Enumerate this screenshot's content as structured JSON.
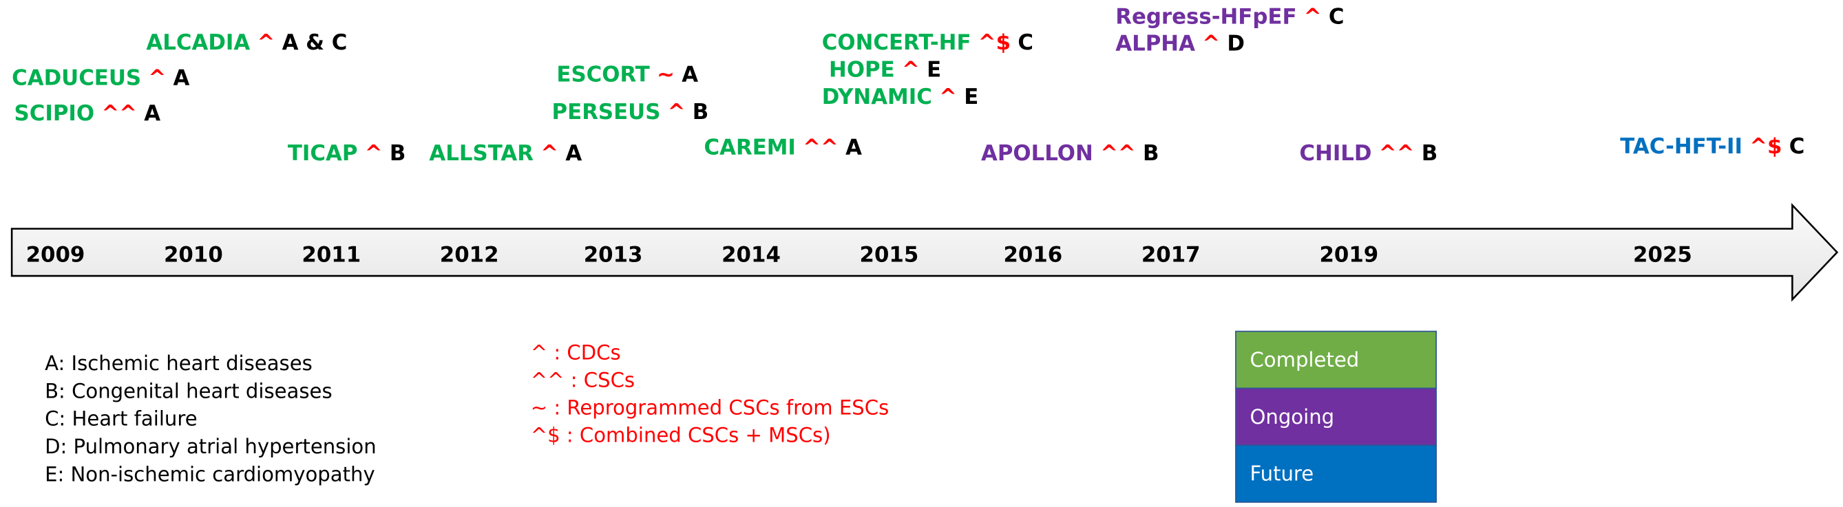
{
  "trials": [
    {
      "name": "ALCADIA",
      "marker": "^",
      "indication": "A & C",
      "color": "#00b050"
    },
    {
      "name": "CADUCEUS",
      "marker": "^",
      "indication": "A",
      "color": "#00b050"
    },
    {
      "name": "SCIPIO",
      "marker": "^^",
      "indication": "A",
      "color": "#00b050"
    },
    {
      "name": "TICAP",
      "marker": "^",
      "indication": "B",
      "color": "#00b050"
    },
    {
      "name": "ALLSTAR",
      "marker": "^",
      "indication": "A",
      "color": "#00b050"
    },
    {
      "name": "ESCORT",
      "marker": "~",
      "indication": "A",
      "color": "#00b050"
    },
    {
      "name": "PERSEUS",
      "marker": "^",
      "indication": "B",
      "color": "#00b050"
    },
    {
      "name": "CAREMI",
      "marker": "^^",
      "indication": "A",
      "color": "#00b050"
    },
    {
      "name": "CONCERT-HF",
      "marker": "^$",
      "indication": "C",
      "color": "#00b050"
    },
    {
      "name": "HOPE",
      "marker": "^",
      "indication": "E",
      "color": "#00b050"
    },
    {
      "name": "DYNAMIC",
      "marker": "^",
      "indication": "E",
      "color": "#00b050"
    },
    {
      "name": "Regress-HFpEF",
      "marker": "^",
      "indication": "C",
      "color": "#7030a0"
    },
    {
      "name": "ALPHA",
      "marker": "^",
      "indication": "D",
      "color": "#7030a0"
    },
    {
      "name": "APOLLON",
      "marker": "^^",
      "indication": "B",
      "color": "#7030a0"
    },
    {
      "name": "CHILD",
      "marker": "^^",
      "indication": "B",
      "color": "#7030a0"
    },
    {
      "name": "TAC-HFT-II",
      "marker": "^$",
      "indication": "C",
      "color": "#0070c0"
    }
  ],
  "years": [
    "2009",
    "2010",
    "2011",
    "2012",
    "2013",
    "2014",
    "2015",
    "2016",
    "2017",
    "2019",
    "2025"
  ],
  "indications": [
    "A: Ischemic heart diseases",
    "B: Congenital heart diseases",
    "C: Heart failure",
    "D: Pulmonary atrial hypertension",
    "E: Non-ischemic cardiomyopathy"
  ],
  "cell_types": [
    "^ : CDCs",
    "^^ : CSCs",
    "~   : Reprogrammed CSCs from ESCs",
    "^$ : Combined CSCs + MSCs)"
  ],
  "status_legend": [
    {
      "label": "Completed",
      "color": "#70ad47"
    },
    {
      "label": "Ongoing",
      "color": "#7030a0"
    },
    {
      "label": "Future",
      "color": "#0070c0"
    }
  ]
}
